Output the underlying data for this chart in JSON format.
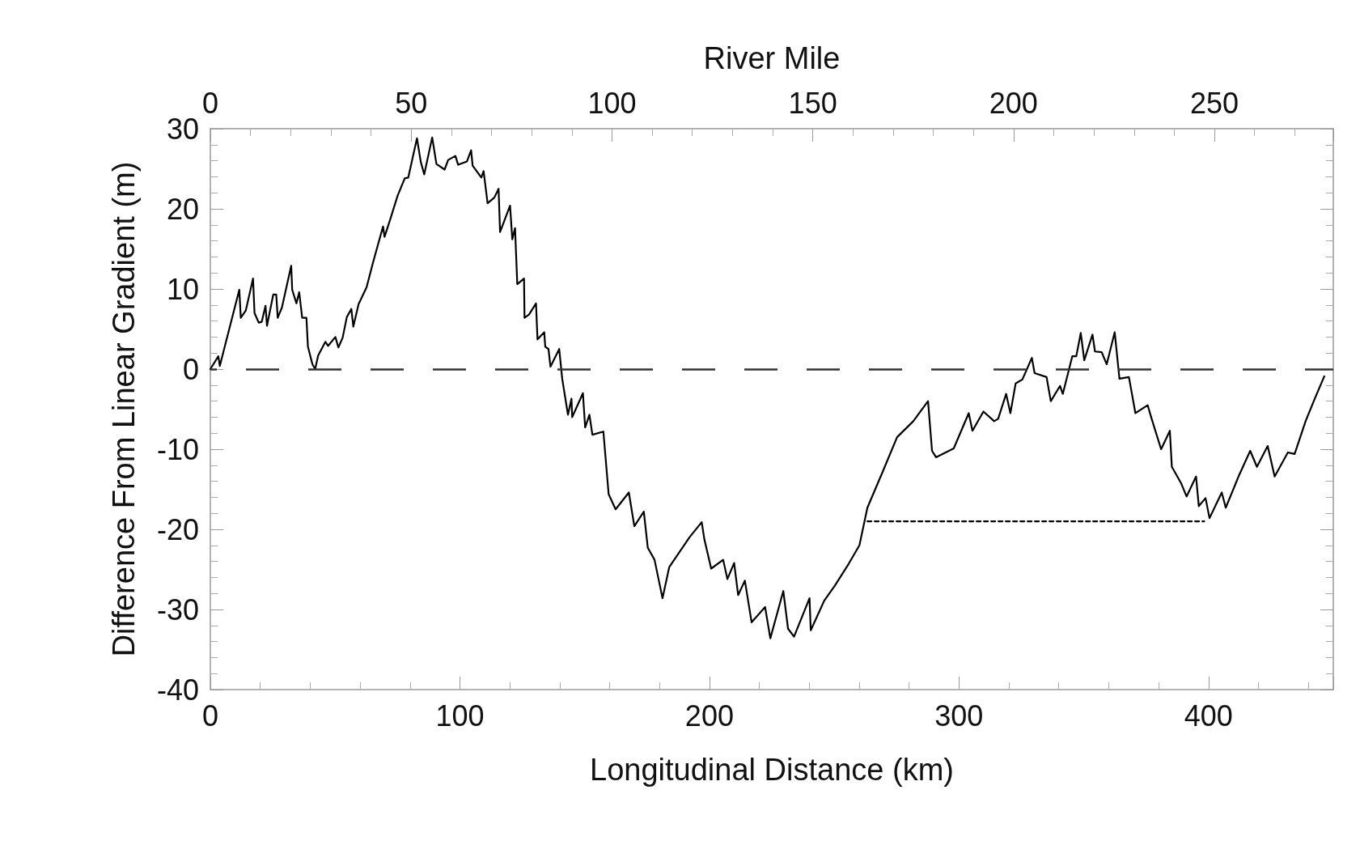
{
  "chart_data": {
    "type": "line",
    "xlabel": "Longitudinal Distance (km)",
    "ylabel": "Difference From Linear Gradient (m)",
    "x2label": "River Mile",
    "xlim": [
      0,
      450
    ],
    "xticks": [
      0,
      100,
      200,
      300,
      400
    ],
    "x2lim": [
      0,
      279.6
    ],
    "x2ticks": [
      0,
      50,
      100,
      150,
      200,
      250
    ],
    "ylim": [
      -40,
      30
    ],
    "yticks": [
      -40,
      -30,
      -20,
      -10,
      0,
      10,
      20,
      30
    ],
    "grid": false,
    "ref_lines": [
      {
        "axis": "y",
        "value": 0,
        "line_style": "dashed",
        "color": "#333333"
      }
    ],
    "series": [
      {
        "color": "#000000",
        "line_style": "solid",
        "x": [
          0,
          3.2,
          3.8,
          6.1,
          11.6,
          12.2,
          14.2,
          17.1,
          17.7,
          19.4,
          20.6,
          22.1,
          22.7,
          25.2,
          26.4,
          27,
          28.7,
          32.4,
          32.8,
          34.5,
          35.6,
          36.8,
          38.5,
          39.1,
          40.9,
          42,
          43.2,
          46.1,
          47.2,
          50.1,
          51.3,
          53,
          54.7,
          56.5,
          57.3,
          59.4,
          62.6,
          65.2,
          69.2,
          69.8,
          72.1,
          75,
          77.9,
          79.3,
          82.8,
          84.3,
          85.7,
          88.9,
          90.6,
          93.9,
          95.3,
          98.2,
          99.3,
          102.8,
          104.5,
          105.1,
          108.6,
          109.5,
          111.1,
          113.8,
          115.5,
          116.1,
          120.1,
          121,
          122.1,
          123,
          125.7,
          125.9,
          127.7,
          130.5,
          131.1,
          133.8,
          134.2,
          135.5,
          136.3,
          139.8,
          141,
          143.3,
          144.7,
          145,
          149.3,
          150.2,
          151.9,
          153.1,
          157.5,
          159.6,
          162.4,
          167.7,
          169.9,
          173.7,
          175.3,
          178,
          181.2,
          183.9,
          192,
          196.9,
          198,
          200.7,
          205.5,
          207.2,
          209.9,
          211.5,
          214.2,
          216.9,
          222.3,
          224.4,
          229.6,
          231.5,
          233.9,
          240.1,
          240.6,
          246,
          250.3,
          255.8,
          260.1,
          263.3,
          269.3,
          275.2,
          281.7,
          287.6,
          289.2,
          290.8,
          297.9,
          303.9,
          305.4,
          309.8,
          314.1,
          315.7,
          318.9,
          320.6,
          322.7,
          325.4,
          329.2,
          330.3,
          335.1,
          336.8,
          340.5,
          341.6,
          345.4,
          347,
          348.8,
          350.2,
          353.5,
          354.5,
          357.2,
          359.2,
          362.4,
          364.3,
          368.1,
          370.7,
          375.6,
          377.2,
          381,
          384.5,
          385.3,
          389.1,
          391.2,
          395,
          396.1,
          398.8,
          400.4,
          405.3,
          406.9,
          412.3,
          416.7,
          419.4,
          423.7,
          426.5,
          431.8,
          434.5,
          438.9,
          442.7,
          446.4
        ],
        "values": [
          0,
          1.6,
          0.4,
          3.2,
          9.9,
          6.4,
          7.3,
          11.3,
          7,
          5.8,
          5.9,
          7.9,
          5.4,
          9.3,
          9.3,
          6.4,
          7.7,
          12.9,
          9.9,
          8.2,
          9.6,
          6.4,
          6.4,
          2.8,
          0.6,
          0,
          1.7,
          3.4,
          2.9,
          4,
          2.7,
          3.9,
          6.5,
          7.5,
          5.3,
          8.1,
          10.2,
          13.3,
          17.8,
          16.5,
          18.7,
          21.6,
          23.8,
          23.9,
          28.8,
          25.9,
          24.3,
          28.9,
          25.6,
          24.9,
          26.1,
          26.6,
          25.5,
          25.9,
          27.3,
          25.4,
          23.9,
          24.7,
          20.7,
          21.4,
          22.5,
          17.1,
          20.4,
          16.2,
          17.6,
          10.6,
          11.3,
          6.4,
          6.8,
          8.2,
          3.7,
          4.6,
          2.8,
          2.5,
          0.3,
          2.5,
          -1.2,
          -5.7,
          -3.7,
          -6,
          -3,
          -7.3,
          -5.7,
          -8.2,
          -7.8,
          -15.6,
          -17.5,
          -15.4,
          -19.6,
          -17.8,
          -22.3,
          -23.8,
          -28.6,
          -24.7,
          -21,
          -19.1,
          -21.3,
          -24.9,
          -23.8,
          -26.2,
          -24.2,
          -28.2,
          -26.4,
          -31.6,
          -29.7,
          -33.6,
          -27.7,
          -32.4,
          -33.4,
          -28.6,
          -32.6,
          -28.9,
          -27,
          -24.3,
          -22,
          -17.3,
          -12.9,
          -8.5,
          -6.5,
          -4,
          -10.2,
          -11,
          -9.9,
          -5.5,
          -7.7,
          -5.3,
          -6.5,
          -6.2,
          -3.1,
          -5.5,
          -1.8,
          -1.3,
          1.4,
          -0.5,
          -1,
          -4,
          -2.1,
          -3.1,
          1.6,
          1.6,
          4.5,
          1.1,
          4.3,
          2.2,
          2.1,
          0.6,
          4.6,
          -1.2,
          -1,
          -5.5,
          -4.5,
          -6.2,
          -10,
          -7.7,
          -12.2,
          -14.3,
          -15.9,
          -13.4,
          -17.1,
          -16.1,
          -18.6,
          -15.4,
          -17.3,
          -13.2,
          -10.2,
          -12.2,
          -9.6,
          -13.4,
          -10.4,
          -10.6,
          -6.5,
          -3.6,
          -0.9
        ]
      },
      {
        "color": "#000000",
        "line_style": "dotted",
        "x": [
          263.3,
          398.3
        ],
        "values": [
          -19,
          -19
        ]
      }
    ]
  }
}
